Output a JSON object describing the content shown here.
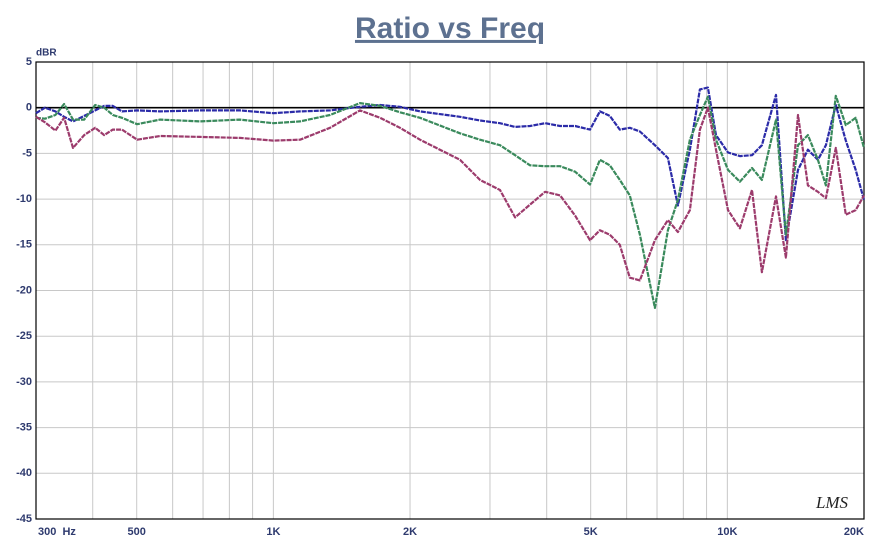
{
  "chart_data": {
    "type": "line",
    "title": "Ratio vs Freq",
    "y_label": "dBR",
    "logo": "LMS",
    "log_x": true,
    "grid": true,
    "x": [
      300,
      314,
      331,
      346,
      362,
      383,
      405,
      424,
      443,
      464,
      501,
      563,
      689,
      844,
      1000,
      1145,
      1333,
      1552,
      1718,
      1901,
      2104,
      2577,
      2852,
      3156,
      3408,
      3676,
      3967,
      4281,
      4620,
      4983,
      5240,
      5510,
      5796,
      6098,
      6418,
      6926,
      7398,
      7782,
      8272,
      8702,
      9062,
      9439,
      10033,
      10660,
      11330,
      11916,
      12798,
      13460,
      14307,
      15048,
      15828,
      16485,
      17337,
      18234,
      19176,
      20000
    ],
    "series": [
      {
        "color": "#2b2ba8",
        "values": [
          -0.6,
          0,
          -0.4,
          -1,
          -1.5,
          -0.9,
          -0.3,
          0.2,
          0.2,
          -0.4,
          -0.3,
          -0.4,
          -0.3,
          -0.3,
          -0.6,
          -0.4,
          -0.3,
          0.1,
          0.3,
          0.1,
          -0.4,
          -1,
          -1.4,
          -1.7,
          -2.1,
          -2,
          -1.7,
          -2,
          -2,
          -2.4,
          -0.4,
          -0.9,
          -2.4,
          -2.2,
          -2.6,
          -4.1,
          -5.5,
          -10.7,
          -4.6,
          2,
          2.2,
          -3,
          -4.9,
          -5.3,
          -5.2,
          -4.1,
          1.4,
          -14.5,
          -6.8,
          -4.6,
          -5.7,
          -4.1,
          0.3,
          -3.6,
          -6.8,
          -10.1
        ]
      },
      {
        "color": "#3a8a5c",
        "values": [
          -1.1,
          -1.2,
          -0.8,
          0.4,
          -1.3,
          -1.3,
          0.3,
          0,
          -0.8,
          -1.1,
          -1.8,
          -1.3,
          -1.5,
          -1.3,
          -1.7,
          -1.5,
          -0.8,
          0.5,
          0.2,
          -0.5,
          -1.1,
          -2.8,
          -3.5,
          -4.1,
          -5.2,
          -6.3,
          -6.4,
          -6.4,
          -7,
          -8.4,
          -5.7,
          -6.3,
          -7.9,
          -9.6,
          -13.9,
          -21.9,
          -13.4,
          -10.1,
          -3.5,
          -0.8,
          1.2,
          -3.5,
          -6.8,
          -8.1,
          -6.6,
          -7.9,
          -1.3,
          -13.9,
          -4.1,
          -3,
          -5.7,
          -8.5,
          1.3,
          -1.9,
          -1.1,
          -4.4
        ]
      },
      {
        "color": "#9c3b6c",
        "values": [
          -1,
          -1.6,
          -2.5,
          -1.1,
          -4.4,
          -3,
          -2.2,
          -3,
          -2.4,
          -2.4,
          -3.5,
          -3.1,
          -3.2,
          -3.3,
          -3.6,
          -3.5,
          -2.2,
          -0.3,
          -1.1,
          -2.2,
          -3.5,
          -5.7,
          -7.9,
          -9,
          -12,
          -10.6,
          -9.2,
          -9.6,
          -11.8,
          -14.5,
          -13.4,
          -13.9,
          -15,
          -18.6,
          -18.9,
          -14.5,
          -12.3,
          -13.6,
          -11.2,
          -2.4,
          0,
          -4.6,
          -11.2,
          -13.2,
          -9,
          -18,
          -9.7,
          -16.4,
          -0.8,
          -8.5,
          -9.2,
          -9.9,
          -4.4,
          -11.7,
          -11.2,
          -9.6
        ]
      }
    ],
    "xlim": [
      300,
      20000
    ],
    "xticks": [
      {
        "value": 300,
        "label": "300  Hz"
      },
      500,
      {
        "value": 1000,
        "label": "1K"
      },
      {
        "value": 2000,
        "label": "2K"
      },
      {
        "value": 5000,
        "label": "5K"
      },
      {
        "value": 10000,
        "label": "10K"
      },
      {
        "value": 20000,
        "label": "20K"
      }
    ],
    "xgrid": [
      300,
      400,
      500,
      600,
      700,
      800,
      900,
      1000,
      2000,
      3000,
      4000,
      5000,
      6000,
      7000,
      8000,
      9000,
      10000,
      20000
    ],
    "ylim": [
      -45,
      5
    ],
    "yticks": [
      5,
      0,
      -5,
      -10,
      -15,
      -20,
      -25,
      -30,
      -35,
      -40,
      -45
    ]
  }
}
